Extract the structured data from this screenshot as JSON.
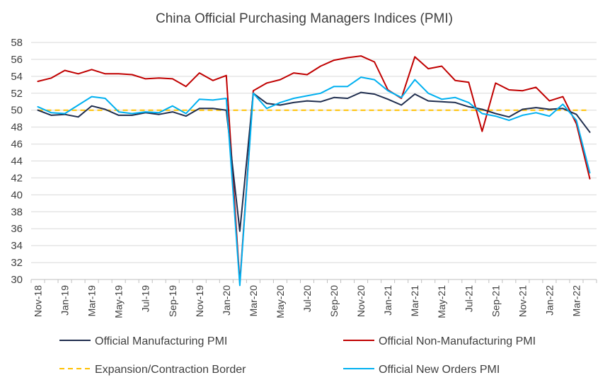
{
  "chart_data": {
    "type": "line",
    "title": "China Official Purchasing Managers Indices (PMI)",
    "xlabel": "",
    "ylabel": "",
    "ylim": [
      30,
      58
    ],
    "yticks": [
      30,
      32,
      34,
      36,
      38,
      40,
      42,
      44,
      46,
      48,
      50,
      52,
      54,
      56,
      58
    ],
    "x": [
      "Nov-18",
      "Dec-18",
      "Jan-19",
      "Feb-19",
      "Mar-19",
      "Apr-19",
      "May-19",
      "Jun-19",
      "Jul-19",
      "Aug-19",
      "Sep-19",
      "Oct-19",
      "Nov-19",
      "Dec-19",
      "Jan-20",
      "Feb-20",
      "Mar-20",
      "Apr-20",
      "May-20",
      "Jun-20",
      "Jul-20",
      "Aug-20",
      "Sep-20",
      "Oct-20",
      "Nov-20",
      "Dec-20",
      "Jan-21",
      "Feb-21",
      "Mar-21",
      "Apr-21",
      "May-21",
      "Jun-21",
      "Jul-21",
      "Aug-21",
      "Sep-21",
      "Oct-21",
      "Nov-21",
      "Dec-21",
      "Jan-22",
      "Feb-22",
      "Mar-22",
      "Apr-22"
    ],
    "x_tick_labels": [
      "Nov-18",
      "Jan-19",
      "Mar-19",
      "May-19",
      "Jul-19",
      "Sep-19",
      "Nov-19",
      "Jan-20",
      "Mar-20",
      "May-20",
      "Jul-20",
      "Sep-20",
      "Nov-20",
      "Jan-21",
      "Mar-21",
      "May-21",
      "Jul-21",
      "Sep-21",
      "Nov-21",
      "Jan-22",
      "Mar-22"
    ],
    "grid": true,
    "legend_position": "bottom",
    "series": [
      {
        "name": "Official Manufacturing PMI",
        "color": "#1f2d4e",
        "style": "solid",
        "values": [
          50.0,
          49.4,
          49.5,
          49.2,
          50.5,
          50.1,
          49.4,
          49.4,
          49.7,
          49.5,
          49.8,
          49.3,
          50.2,
          50.2,
          50.0,
          35.7,
          52.0,
          50.8,
          50.6,
          50.9,
          51.1,
          51.0,
          51.5,
          51.4,
          52.1,
          51.9,
          51.3,
          50.6,
          51.9,
          51.1,
          51.0,
          50.9,
          50.4,
          50.1,
          49.6,
          49.2,
          50.1,
          50.3,
          50.1,
          50.2,
          49.5,
          47.4
        ]
      },
      {
        "name": "Official Non-Manufacturing PMI",
        "color": "#c00000",
        "style": "solid",
        "values": [
          53.4,
          53.8,
          54.7,
          54.3,
          54.8,
          54.3,
          54.3,
          54.2,
          53.7,
          53.8,
          53.7,
          52.8,
          54.4,
          53.5,
          54.1,
          29.6,
          52.3,
          53.2,
          53.6,
          54.4,
          54.2,
          55.2,
          55.9,
          56.2,
          56.4,
          55.7,
          52.4,
          51.4,
          56.3,
          54.9,
          55.2,
          53.5,
          53.3,
          47.5,
          53.2,
          52.4,
          52.3,
          52.7,
          51.1,
          51.6,
          48.4,
          41.9
        ]
      },
      {
        "name": "Expansion/Contraction Border",
        "color": "#ffc000",
        "style": "dashed",
        "values": [
          50,
          50,
          50,
          50,
          50,
          50,
          50,
          50,
          50,
          50,
          50,
          50,
          50,
          50,
          50,
          50,
          50,
          50,
          50,
          50,
          50,
          50,
          50,
          50,
          50,
          50,
          50,
          50,
          50,
          50,
          50,
          50,
          50,
          50,
          50,
          50,
          50,
          50,
          50,
          50,
          50,
          50
        ]
      },
      {
        "name": "Official New Orders PMI",
        "color": "#00b0f0",
        "style": "solid",
        "values": [
          50.4,
          49.7,
          49.6,
          50.6,
          51.6,
          51.4,
          49.8,
          49.6,
          49.8,
          49.7,
          50.5,
          49.6,
          51.3,
          51.2,
          51.4,
          29.3,
          52.0,
          50.2,
          50.9,
          51.4,
          51.7,
          52.0,
          52.8,
          52.8,
          53.9,
          53.6,
          52.3,
          51.5,
          53.6,
          52.0,
          51.3,
          51.5,
          50.9,
          49.6,
          49.3,
          48.8,
          49.4,
          49.7,
          49.3,
          50.7,
          48.8,
          42.6
        ]
      }
    ]
  }
}
